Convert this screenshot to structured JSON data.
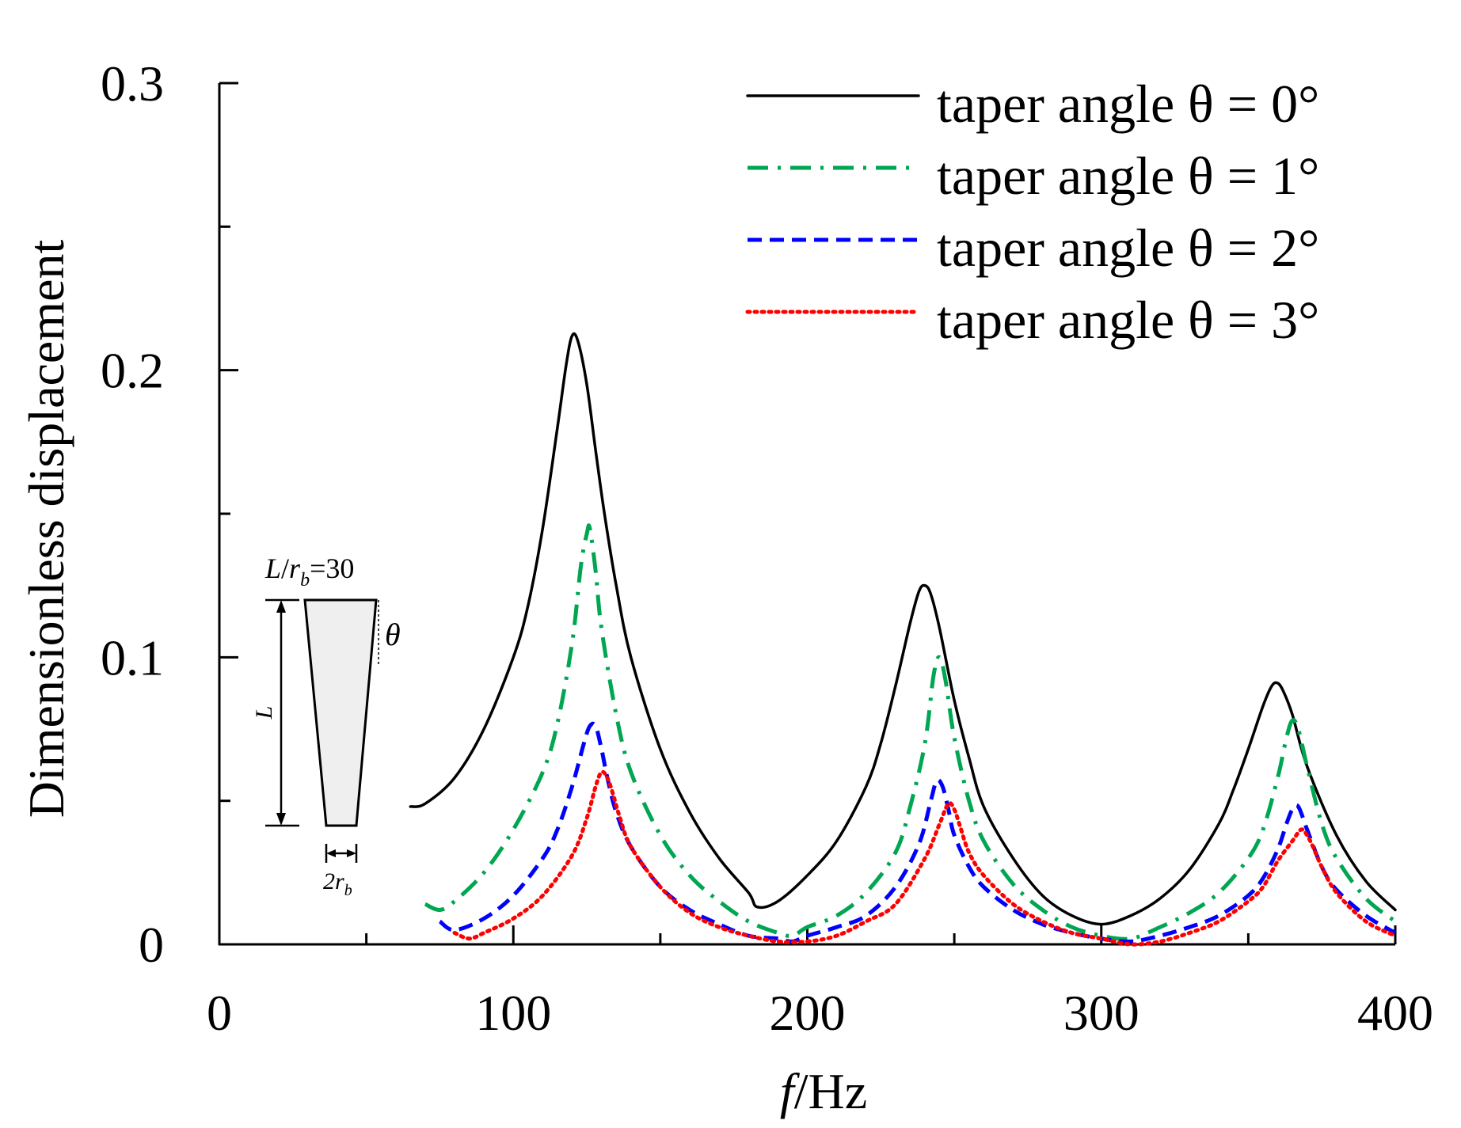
{
  "chart_data": {
    "type": "line",
    "title": "",
    "xlabel_italic": "f",
    "xlabel_rest": "/Hz",
    "ylabel": "Dimensionless displacement",
    "xlim": [
      0,
      400
    ],
    "ylim": [
      0,
      0.3
    ],
    "x_ticks": [
      0,
      100,
      200,
      300,
      400
    ],
    "x_tick_labels": [
      "0",
      "100",
      "200",
      "300",
      "400"
    ],
    "y_ticks": [
      0,
      0.1,
      0.2,
      0.3
    ],
    "y_tick_labels": [
      "0",
      "0.1",
      "0.2",
      "0.3"
    ],
    "x_minor_ticks": [
      50,
      150,
      250,
      350
    ],
    "y_minor_ticks": [
      0.05,
      0.15,
      0.25
    ],
    "legend_position": "top-right",
    "series": [
      {
        "name": "taper angle θ = 0°",
        "color": "#000000",
        "dash": "solid",
        "x": [
          65,
          70,
          80,
          90,
          100,
          105,
          110,
          115,
          118,
          120,
          122,
          125,
          128,
          131,
          135,
          140,
          150,
          160,
          170,
          180,
          183,
          190,
          200,
          210,
          220,
          225,
          230,
          235,
          238,
          240,
          242,
          245,
          250,
          255,
          260,
          270,
          280,
          290,
          300,
          310,
          320,
          330,
          340,
          345,
          350,
          355,
          358,
          360,
          362,
          365,
          370,
          380,
          390,
          400
        ],
        "y": [
          0.048,
          0.049,
          0.058,
          0.075,
          0.1,
          0.118,
          0.145,
          0.18,
          0.202,
          0.212,
          0.21,
          0.195,
          0.172,
          0.15,
          0.125,
          0.1,
          0.068,
          0.046,
          0.03,
          0.018,
          0.013,
          0.015,
          0.024,
          0.036,
          0.055,
          0.07,
          0.09,
          0.112,
          0.123,
          0.125,
          0.122,
          0.11,
          0.085,
          0.065,
          0.048,
          0.03,
          0.017,
          0.01,
          0.007,
          0.01,
          0.016,
          0.026,
          0.042,
          0.054,
          0.068,
          0.083,
          0.09,
          0.091,
          0.088,
          0.08,
          0.062,
          0.038,
          0.022,
          0.012
        ]
      },
      {
        "name": "taper angle θ = 1°",
        "color": "#00a651",
        "dash": "dashdot",
        "x": [
          70,
          75,
          80,
          90,
          100,
          110,
          115,
          120,
          123,
          125,
          126,
          128,
          130,
          135,
          140,
          150,
          160,
          170,
          180,
          190,
          195,
          200,
          210,
          220,
          230,
          235,
          240,
          243,
          245,
          247,
          250,
          255,
          260,
          270,
          280,
          290,
          300,
          310,
          320,
          330,
          340,
          350,
          355,
          360,
          363,
          365,
          367,
          370,
          375,
          380,
          390,
          400
        ],
        "y": [
          0.014,
          0.012,
          0.015,
          0.025,
          0.04,
          0.06,
          0.077,
          0.105,
          0.132,
          0.143,
          0.145,
          0.13,
          0.11,
          0.08,
          0.06,
          0.038,
          0.024,
          0.015,
          0.008,
          0.004,
          0.003,
          0.006,
          0.01,
          0.018,
          0.032,
          0.048,
          0.07,
          0.094,
          0.1,
          0.092,
          0.072,
          0.05,
          0.036,
          0.021,
          0.012,
          0.006,
          0.003,
          0.002,
          0.006,
          0.011,
          0.018,
          0.03,
          0.04,
          0.058,
          0.072,
          0.078,
          0.075,
          0.062,
          0.042,
          0.03,
          0.016,
          0.008
        ]
      },
      {
        "name": "taper angle θ = 2°",
        "color": "#0000ff",
        "dash": "dashed",
        "x": [
          75,
          80,
          90,
          100,
          110,
          115,
          120,
          124,
          126,
          128,
          130,
          132,
          135,
          140,
          150,
          160,
          170,
          180,
          190,
          195,
          200,
          210,
          220,
          230,
          238,
          242,
          244,
          246,
          248,
          250,
          255,
          260,
          270,
          280,
          290,
          300,
          310,
          320,
          330,
          340,
          350,
          355,
          360,
          363,
          365,
          367,
          370,
          375,
          380,
          390,
          400
        ],
        "y": [
          0.008,
          0.005,
          0.009,
          0.017,
          0.03,
          0.04,
          0.055,
          0.07,
          0.076,
          0.076,
          0.068,
          0.058,
          0.046,
          0.034,
          0.02,
          0.012,
          0.007,
          0.003,
          0.002,
          0.001,
          0.003,
          0.006,
          0.01,
          0.02,
          0.035,
          0.05,
          0.057,
          0.055,
          0.047,
          0.038,
          0.027,
          0.02,
          0.012,
          0.007,
          0.004,
          0.002,
          0.001,
          0.003,
          0.006,
          0.01,
          0.017,
          0.023,
          0.033,
          0.042,
          0.047,
          0.048,
          0.04,
          0.027,
          0.019,
          0.01,
          0.004
        ]
      },
      {
        "name": "taper angle θ = 3°",
        "color": "#ff0000",
        "dash": "dotted",
        "x": [
          80,
          85,
          90,
          100,
          110,
          120,
          125,
          128,
          130,
          132,
          134,
          136,
          140,
          150,
          160,
          170,
          180,
          190,
          200,
          210,
          220,
          230,
          240,
          245,
          248,
          250,
          252,
          255,
          260,
          270,
          280,
          290,
          300,
          310,
          320,
          330,
          340,
          350,
          355,
          360,
          365,
          368,
          370,
          372,
          375,
          380,
          390,
          400
        ],
        "y": [
          0.004,
          0.002,
          0.004,
          0.009,
          0.017,
          0.031,
          0.044,
          0.055,
          0.06,
          0.058,
          0.052,
          0.045,
          0.034,
          0.02,
          0.011,
          0.006,
          0.003,
          0.001,
          0.001,
          0.003,
          0.008,
          0.014,
          0.03,
          0.042,
          0.049,
          0.047,
          0.041,
          0.032,
          0.024,
          0.014,
          0.008,
          0.004,
          0.002,
          0.0,
          0.001,
          0.004,
          0.008,
          0.015,
          0.02,
          0.029,
          0.036,
          0.04,
          0.038,
          0.034,
          0.027,
          0.018,
          0.008,
          0.003
        ]
      }
    ],
    "inset": {
      "label_L": "L",
      "label_slash": "/",
      "label_r": "r",
      "label_sub_b": "b",
      "label_eq": "=30",
      "label_theta": "θ",
      "label_two": "2",
      "label_r2": "r",
      "label_sub_b2": "b",
      "fill": "#efefef"
    }
  }
}
